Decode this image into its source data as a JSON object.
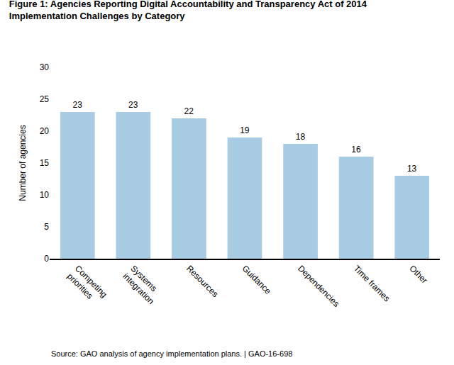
{
  "chart_data": {
    "type": "bar",
    "title": "Figure 1: Agencies Reporting Digital Accountability and Transparency Act of 2014\nImplementation Challenges by Category",
    "ylabel": "Number of agencies",
    "categories": [
      "Competing\npriorities",
      "Systems\nintegration",
      "Resources",
      "Guidance",
      "Dependencies",
      "Time frames",
      "Other"
    ],
    "values": [
      23,
      23,
      22,
      19,
      18,
      16,
      13
    ],
    "color": "#a8cce4",
    "ylim": [
      0,
      30
    ],
    "yticks": [
      0,
      5,
      10,
      15,
      20,
      25,
      30
    ],
    "grid": false,
    "data_labels": true,
    "annotations": [
      "Source: GAO analysis of agency implementation plans. | GAO-16-698"
    ]
  }
}
